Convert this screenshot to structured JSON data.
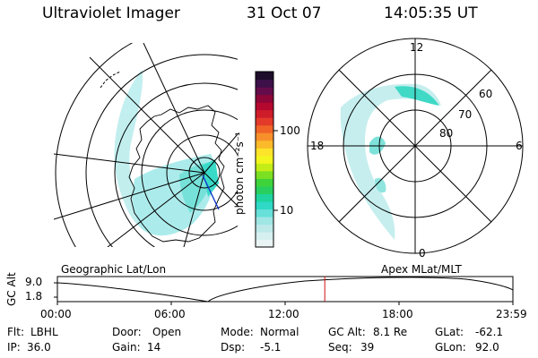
{
  "header": {
    "instrument": "Ultraviolet Imager",
    "date": "31 Oct 07",
    "time": "14:05:35 UT"
  },
  "colorbar": {
    "unit_label": "photon cm⁻²s⁻¹",
    "ticks": [
      {
        "value": 100,
        "label": "100"
      },
      {
        "value": 10,
        "label": "10"
      }
    ],
    "colors": [
      "#eaf4f4",
      "#d6efef",
      "#bde9e9",
      "#9fe6e4",
      "#66e0d8",
      "#2fd9c6",
      "#1fd49e",
      "#28cf5f",
      "#3ed339",
      "#7bdf22",
      "#c4ec17",
      "#f3f51e",
      "#fde32a",
      "#fbba2a",
      "#f7902a",
      "#f06428",
      "#e33a2a",
      "#cf1c2a",
      "#b5082f",
      "#8e0637",
      "#640c4b",
      "#3d1049",
      "#1d0d2a"
    ]
  },
  "panels": {
    "geographic_caption": "Geographic Lat/Lon",
    "apex_caption": "Apex MLat/MLT",
    "polar": {
      "mlt_labels": [
        "12",
        "6",
        "0",
        "18"
      ],
      "mlat_labels": [
        "60",
        "70",
        "80"
      ]
    }
  },
  "timeline": {
    "y_axis_title": "GC Alt",
    "y_ticks": [
      "9.0",
      "1.8"
    ],
    "x_ticks": [
      "00:00",
      "06:00",
      "12:00",
      "18:00",
      "23:59"
    ],
    "marker_time_hours": 14.09
  },
  "info": {
    "filter_label": "Flt:",
    "filter_value": "LBHL",
    "door_label": "Door:",
    "door_value": "Open",
    "mode_label": "Mode:",
    "mode_value": "Normal",
    "gcalt_label": "GC Alt:",
    "gcalt_value": "8.1 Re",
    "glat_label": "GLat:",
    "glat_value": "-62.1",
    "ip_label": "IP:",
    "ip_value": "36.0",
    "gain_label": "Gain:",
    "gain_value": "14",
    "dsp_label": "Dsp:",
    "dsp_value": "-5.1",
    "seq_label": "Seq:",
    "seq_value": "39",
    "glon_label": "GLon:",
    "glon_value": "92.0"
  }
}
